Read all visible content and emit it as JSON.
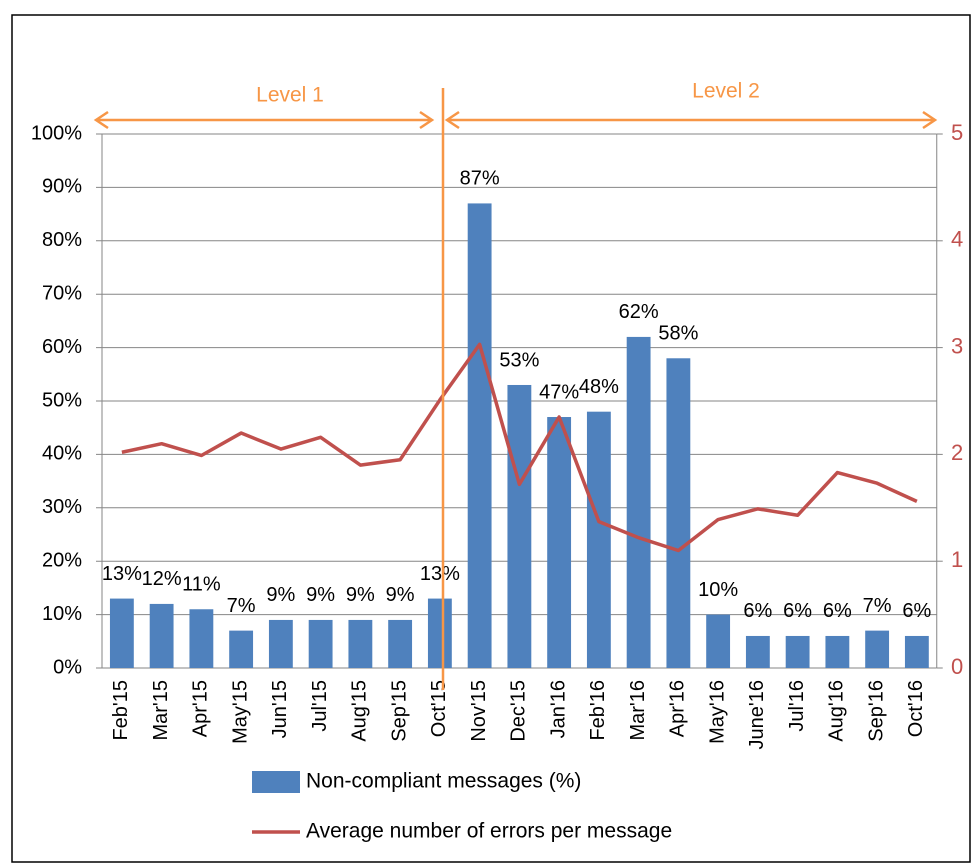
{
  "chart_data": {
    "type": "bar",
    "categories": [
      "Feb'15",
      "Mar'15",
      "Apr'15",
      "May'15",
      "Jun'15",
      "Jul'15",
      "Aug'15",
      "Sep'15",
      "Oct'15",
      "Nov'15",
      "Dec'15",
      "Jan'16",
      "Feb'16",
      "Mar'16",
      "Apr'16",
      "May'16",
      "June'16",
      "Jul'16",
      "Aug'16",
      "Sep'16",
      "Oct'16"
    ],
    "series": [
      {
        "name": "Non-compliant messages (%)",
        "type": "bar",
        "color": "#4f81bd",
        "values": [
          13,
          12,
          11,
          7,
          9,
          9,
          9,
          9,
          13,
          87,
          53,
          47,
          48,
          62,
          58,
          10,
          6,
          6,
          6,
          7,
          6
        ],
        "value_labels": [
          "13%",
          "12%",
          "11%",
          "7%",
          "9%",
          "9%",
          "9%",
          "9%",
          "13%",
          "87%",
          "53%",
          "47%",
          "48%",
          "62%",
          "58%",
          "10%",
          "6%",
          "6%",
          "6%",
          "7%",
          "6%"
        ]
      },
      {
        "name": "Average number of errors per message",
        "type": "line",
        "color": "#c0504d",
        "axis": "y2",
        "values": [
          2.02,
          2.1,
          1.99,
          2.2,
          2.05,
          2.16,
          1.9,
          1.95,
          2.51,
          3.03,
          1.72,
          2.35,
          1.37,
          1.22,
          1.1,
          1.39,
          1.49,
          1.43,
          1.83,
          1.73,
          1.56
        ]
      }
    ],
    "ylim": [
      0,
      100
    ],
    "yticks": [
      {
        "value": 0,
        "label": "0%"
      },
      {
        "value": 10,
        "label": "10%"
      },
      {
        "value": 20,
        "label": "20%"
      },
      {
        "value": 30,
        "label": "30%"
      },
      {
        "value": 40,
        "label": "40%"
      },
      {
        "value": 50,
        "label": "50%"
      },
      {
        "value": 60,
        "label": "60%"
      },
      {
        "value": 70,
        "label": "70%"
      },
      {
        "value": 80,
        "label": "80%"
      },
      {
        "value": 90,
        "label": "90%"
      },
      {
        "value": 100,
        "label": "100%"
      }
    ],
    "y2lim": [
      0,
      5
    ],
    "y2ticks": [
      0,
      1,
      2,
      3,
      4,
      5
    ],
    "y2color": "#c0504d",
    "annotations": [
      "Level 1",
      "Level 2"
    ],
    "annotation_color": "#f79646",
    "grid": true,
    "legend": "bottom"
  }
}
